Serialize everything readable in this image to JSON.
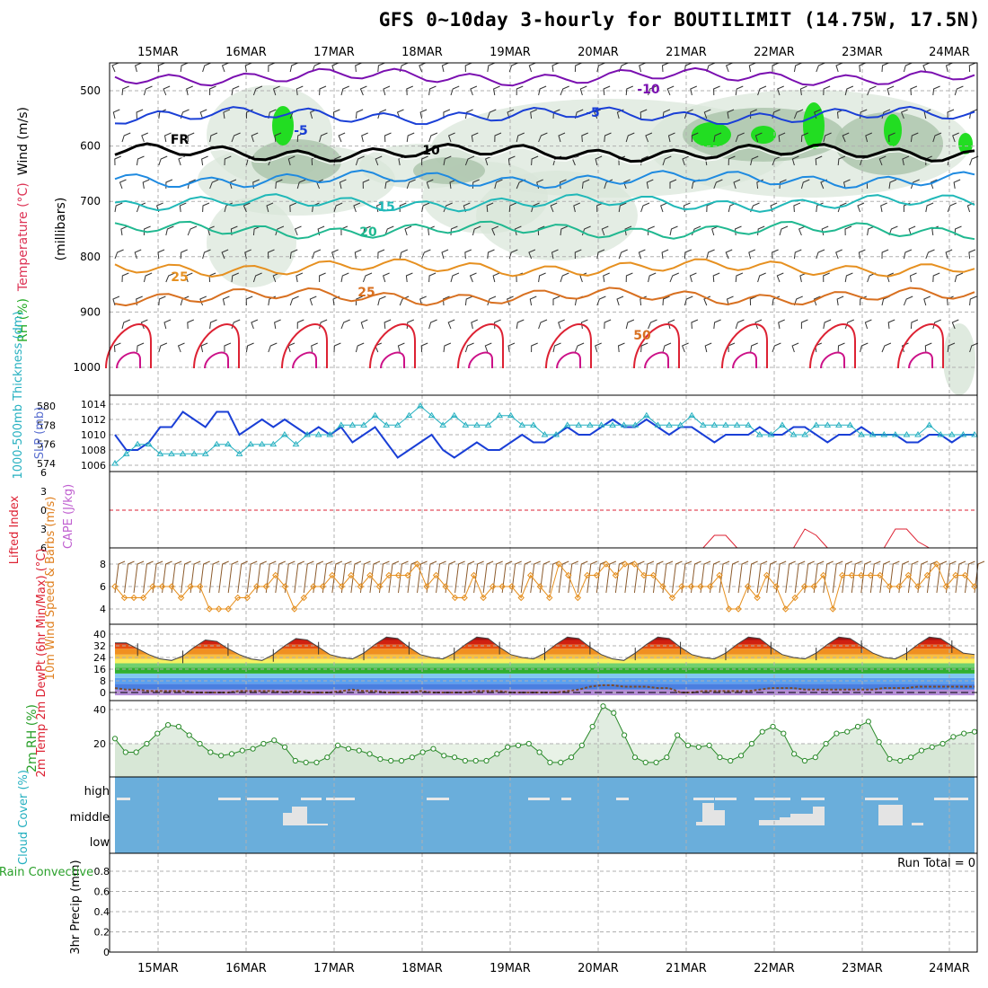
{
  "title": "GFS 0~10day 3-hourly for BOUTILIMIT (14.75W, 17.5N)",
  "dates": [
    "15MAR",
    "16MAR",
    "17MAR",
    "18MAR",
    "19MAR",
    "20MAR",
    "21MAR",
    "22MAR",
    "23MAR",
    "24MAR"
  ],
  "colors": {
    "purple": "#7a0fb0",
    "blue": "#1a3fd6",
    "teal": "#25b0c0",
    "orange": "#e69020",
    "red": "#dd2233",
    "green": "#2aa02a",
    "cloud": "#6aaedb",
    "slate": "#5a6fd0"
  },
  "chart_data": [
    {
      "type": "contour",
      "name": "upper-air",
      "ylabel": "(millibars)",
      "side_labels": {
        "rh": "RH (%)",
        "temperature": "Temperature (°C)",
        "wind": "Wind (m/s)"
      },
      "yticks": [
        500,
        600,
        700,
        800,
        900,
        1000
      ],
      "contour_labels": [
        "-10",
        "-5",
        "FR",
        "-5",
        "10",
        "15",
        "20",
        "25",
        "25",
        "50"
      ],
      "isotherms": [
        {
          "name": "-10",
          "pressure": 475
        },
        {
          "name": "-5",
          "pressure": 545
        },
        {
          "name": "FR",
          "pressure": 612
        },
        {
          "name": "5",
          "pressure": 660
        },
        {
          "name": "10",
          "pressure": 703
        },
        {
          "name": "15",
          "pressure": 752
        },
        {
          "name": "20",
          "pressure": 820
        },
        {
          "name": "25",
          "pressure": 872
        }
      ]
    },
    {
      "type": "line",
      "name": "thickness-slp",
      "ylabel_left": "1000-500mb Thickness (dm)",
      "ylabel_right": "SLP (mb)",
      "yticks_left": [
        574,
        576,
        578,
        580
      ],
      "yticks_right": [
        1006,
        1008,
        1010,
        1012,
        1014
      ],
      "slp": [
        1010,
        1008,
        1008,
        1009,
        1011,
        1011,
        1013,
        1012,
        1011,
        1013,
        1013,
        1010,
        1011,
        1012,
        1011,
        1012,
        1011,
        1010,
        1011,
        1010,
        1011,
        1009,
        1010,
        1011,
        1009,
        1007,
        1008,
        1009,
        1010,
        1008,
        1007,
        1008,
        1009,
        1008,
        1008,
        1009,
        1010,
        1009,
        1009,
        1010,
        1011,
        1010,
        1010,
        1011,
        1012,
        1011,
        1011,
        1012,
        1011,
        1010,
        1011,
        1011,
        1010,
        1009,
        1010,
        1010,
        1010,
        1011,
        1010,
        1010,
        1011,
        1011,
        1010,
        1009,
        1010,
        1010,
        1011,
        1010,
        1010,
        1010,
        1009,
        1009,
        1010,
        1010,
        1009,
        1010,
        1010
      ],
      "thickness": [
        574,
        575,
        576,
        576,
        575,
        575,
        575,
        575,
        575,
        576,
        576,
        575,
        576,
        576,
        576,
        577,
        576,
        577,
        577,
        577,
        578,
        578,
        578,
        579,
        578,
        578,
        579,
        580,
        579,
        578,
        579,
        578,
        578,
        578,
        579,
        579,
        578,
        578,
        577,
        577,
        578,
        578,
        578,
        578,
        578,
        578,
        578,
        579,
        578,
        578,
        578,
        579,
        578,
        578,
        578,
        578,
        578,
        577,
        577,
        578,
        577,
        577,
        578,
        578,
        578,
        578,
        577,
        577,
        577,
        577,
        577,
        577,
        578,
        577,
        577,
        577,
        577
      ]
    },
    {
      "type": "line",
      "name": "stability",
      "ylabel_left": "Lifted Index",
      "ylabel_right": "CAPE (J/kg)",
      "yticks": [
        -6,
        -3,
        0,
        3,
        6
      ],
      "lifted_index": [
        6,
        6,
        6,
        6,
        6,
        6,
        6,
        6,
        6,
        6,
        6,
        6,
        6,
        6,
        6,
        6,
        6,
        6,
        6,
        6,
        6,
        6,
        6,
        6,
        6,
        6,
        6,
        6,
        6,
        6,
        6,
        6,
        6,
        6,
        6,
        6,
        6,
        6,
        6,
        6,
        6,
        6,
        6,
        6,
        6,
        6,
        6,
        6,
        6,
        6,
        6,
        6,
        6,
        4,
        4,
        6,
        6,
        6,
        6,
        6,
        6,
        3,
        4,
        6,
        6,
        6,
        6,
        6,
        6,
        3,
        3,
        5,
        6,
        6,
        6,
        6,
        6
      ]
    },
    {
      "type": "line",
      "name": "wind10m",
      "ylabel": "10m Wind Speed & Barbs (m/s)",
      "yticks": [
        4,
        6,
        8
      ],
      "speed": [
        6,
        5,
        5,
        5,
        6,
        6,
        6,
        5,
        6,
        6,
        4,
        4,
        4,
        5,
        5,
        6,
        6,
        7,
        6,
        4,
        5,
        6,
        6,
        7,
        6,
        7,
        6,
        7,
        6,
        7,
        7,
        7,
        8,
        6,
        7,
        6,
        5,
        5,
        7,
        5,
        6,
        6,
        6,
        5,
        7,
        6,
        5,
        8,
        7,
        5,
        7,
        7,
        8,
        7,
        8,
        8,
        7,
        7,
        6,
        5,
        6,
        6,
        6,
        6,
        7,
        4,
        4,
        6,
        5,
        7,
        6,
        4,
        5,
        6,
        6,
        7,
        4,
        7,
        7,
        7,
        7,
        7,
        6,
        6,
        7,
        6,
        7,
        8,
        6,
        7,
        7,
        6
      ]
    },
    {
      "type": "area",
      "name": "temperature2m",
      "ylabel": "2m Temp 2m DewPt (6hr Min/Max) (°C)",
      "yticks": [
        0,
        8,
        16,
        24,
        32,
        40
      ],
      "temp": [
        34,
        34,
        30,
        26,
        23,
        22,
        25,
        31,
        36,
        35,
        30,
        26,
        23,
        22,
        26,
        32,
        37,
        36,
        31,
        26,
        24,
        23,
        27,
        33,
        38,
        37,
        31,
        26,
        24,
        23,
        27,
        33,
        38,
        37,
        31,
        26,
        24,
        23,
        27,
        33,
        38,
        37,
        31,
        26,
        23,
        22,
        27,
        33,
        38,
        37,
        31,
        26,
        24,
        23,
        27,
        33,
        38,
        37,
        31,
        26,
        24,
        23,
        27,
        33,
        38,
        37,
        32,
        27,
        24,
        23,
        27,
        33,
        38,
        37,
        32,
        27,
        26
      ],
      "dewpoint": [
        3,
        2,
        2,
        1,
        1,
        1,
        1,
        0,
        0,
        0,
        0,
        1,
        1,
        1,
        1,
        0,
        1,
        0,
        0,
        0,
        1,
        2,
        1,
        1,
        0,
        0,
        0,
        1,
        0,
        0,
        0,
        0,
        1,
        1,
        1,
        0,
        0,
        0,
        0,
        0,
        1,
        2,
        4,
        5,
        5,
        4,
        4,
        4,
        3,
        3,
        0,
        0,
        1,
        1,
        1,
        1,
        1,
        2,
        3,
        3,
        3,
        2,
        2,
        2,
        2,
        2,
        2,
        2,
        3,
        3,
        3,
        4,
        4,
        4,
        4,
        4,
        4
      ]
    },
    {
      "type": "line",
      "name": "rh2m",
      "ylabel": "2m RH (%)",
      "yticks": [
        20,
        40
      ],
      "values": [
        23,
        15,
        15,
        20,
        26,
        31,
        30,
        25,
        20,
        15,
        13,
        14,
        16,
        17,
        20,
        22,
        18,
        10,
        9,
        9,
        12,
        19,
        17,
        16,
        14,
        11,
        10,
        10,
        12,
        15,
        17,
        13,
        12,
        10,
        10,
        10,
        14,
        18,
        19,
        20,
        15,
        9,
        9,
        12,
        19,
        30,
        42,
        38,
        25,
        12,
        9,
        9,
        12,
        25,
        19,
        18,
        19,
        12,
        10,
        13,
        20,
        27,
        30,
        26,
        14,
        10,
        12,
        20,
        26,
        27,
        30,
        33,
        21,
        11,
        10,
        12,
        16,
        18,
        20,
        24,
        26,
        27
      ]
    },
    {
      "type": "bar",
      "name": "cloud-cover",
      "ylabel": "Cloud Cover (%)",
      "level_labels": [
        "high",
        "middle",
        "low"
      ],
      "middle": [
        0,
        0,
        0,
        0,
        0,
        0,
        0,
        0,
        0,
        0,
        0,
        0,
        0,
        0,
        0,
        0,
        0,
        0,
        0,
        30,
        70,
        0,
        0,
        0,
        0,
        0,
        0,
        0,
        0,
        0,
        0,
        0,
        0,
        0,
        0,
        0,
        0,
        0,
        0,
        0,
        0,
        0,
        0,
        0,
        0,
        0,
        0,
        0,
        0,
        0,
        0,
        0,
        0,
        0,
        0,
        0,
        0,
        0,
        0,
        0,
        0,
        0,
        0,
        0,
        0,
        0,
        0,
        0,
        0,
        0,
        0,
        0,
        0,
        0,
        0,
        0,
        0,
        0,
        0,
        0,
        0,
        0
      ],
      "note": ""
    },
    {
      "type": "bar",
      "name": "precip",
      "ylabel": "3hr Precip (mm)",
      "ylabel_left": "Total / Rain Convective",
      "yticks": [
        0,
        0.2,
        0.4,
        0.6,
        0.8
      ],
      "run_total_label": "Run Total = 0",
      "values": []
    }
  ]
}
